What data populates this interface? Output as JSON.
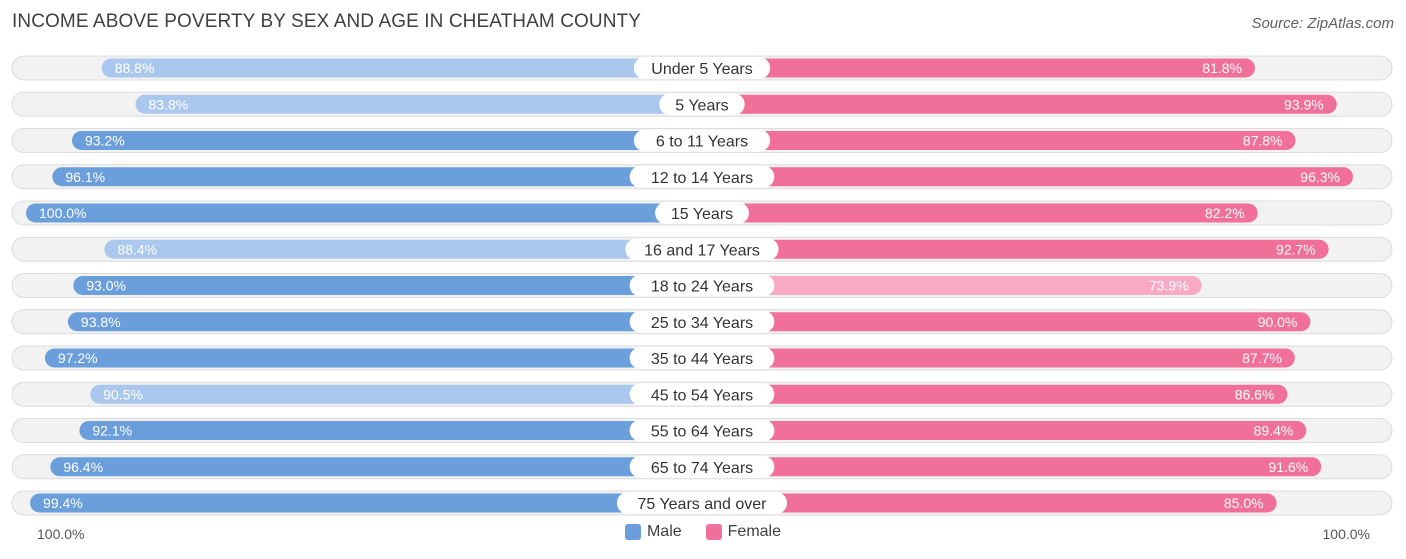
{
  "title": "INCOME ABOVE POVERTY BY SEX AND AGE IN CHEATHAM COUNTY",
  "source": "Source: ZipAtlas.com",
  "axis_left_label": "100.0%",
  "axis_right_label": "100.0%",
  "legend": {
    "male_label": "Male",
    "female_label": "Female"
  },
  "colors": {
    "male": "#6a9fdc",
    "male_light": "#aac8ee",
    "female": "#f07099",
    "female_light": "#f8aac4",
    "row_bg": "#f2f2f2",
    "row_border": "#dcdcdc"
  },
  "chart_data": {
    "type": "bar",
    "orientation": "horizontal-diverging",
    "categories": [
      "Under 5 Years",
      "5 Years",
      "6 to 11 Years",
      "12 to 14 Years",
      "15 Years",
      "16 and 17 Years",
      "18 to 24 Years",
      "25 to 34 Years",
      "35 to 44 Years",
      "45 to 54 Years",
      "55 to 64 Years",
      "65 to 74 Years",
      "75 Years and over"
    ],
    "series": [
      {
        "name": "Male",
        "values": [
          88.8,
          83.8,
          93.2,
          96.1,
          100.0,
          88.4,
          93.0,
          93.8,
          97.2,
          90.5,
          92.1,
          96.4,
          99.4
        ],
        "labels": [
          "88.8%",
          "83.8%",
          "93.2%",
          "96.1%",
          "100.0%",
          "88.4%",
          "93.0%",
          "93.8%",
          "97.2%",
          "90.5%",
          "92.1%",
          "96.4%",
          "99.4%"
        ]
      },
      {
        "name": "Female",
        "values": [
          81.8,
          93.9,
          87.8,
          96.3,
          82.2,
          92.7,
          73.9,
          90.0,
          87.7,
          86.6,
          89.4,
          91.6,
          85.0
        ],
        "labels": [
          "81.8%",
          "93.9%",
          "87.8%",
          "96.3%",
          "82.2%",
          "92.7%",
          "73.9%",
          "90.0%",
          "87.7%",
          "86.6%",
          "89.4%",
          "91.6%",
          "85.0%"
        ]
      }
    ],
    "xlim": [
      0,
      100
    ],
    "legend_position": "bottom-center"
  }
}
